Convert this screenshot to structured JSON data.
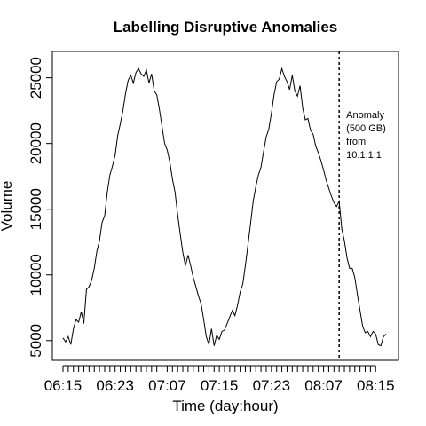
{
  "chart_data": {
    "type": "line",
    "title": "Labelling Disruptive Anomalies",
    "xlabel": "Time (day:hour)",
    "ylabel": "Volume",
    "ylim": [
      3500,
      27000
    ],
    "y_ticks": [
      5000,
      10000,
      15000,
      20000,
      25000
    ],
    "x_tick_labels": [
      "06:15",
      "06:23",
      "07:07",
      "07:15",
      "07:23",
      "08:07",
      "08:15"
    ],
    "x_index_range": [
      1,
      125
    ],
    "x_label_index": [
      1,
      21,
      41,
      61,
      81,
      101,
      121
    ],
    "x_minor_every": 2,
    "grid": false,
    "annotation": {
      "x_index": 107,
      "lines": [
        "Anomaly",
        "(500 GB)",
        "from",
        "10.1.1.1"
      ]
    },
    "series": [
      {
        "values": [
          5200,
          4900,
          5300,
          4700,
          5900,
          6600,
          6400,
          7200,
          6300,
          8900,
          9100,
          9600,
          10500,
          11800,
          12600,
          14000,
          14500,
          16300,
          17600,
          18300,
          19100,
          20600,
          21500,
          22500,
          23800,
          24800,
          25200,
          24600,
          25400,
          25700,
          25300,
          25100,
          25600,
          24600,
          25300,
          24000,
          23700,
          22600,
          21300,
          20000,
          19500,
          18600,
          17300,
          16300,
          14600,
          13100,
          11700,
          10700,
          11500,
          10700,
          9800,
          9100,
          8400,
          7800,
          6600,
          5300,
          4700,
          5900,
          4600,
          5400,
          5100,
          5700,
          5800,
          6300,
          6800,
          7300,
          6900,
          7700,
          8700,
          9300,
          10700,
          12300,
          13900,
          15600,
          16700,
          17600,
          18200,
          19400,
          20500,
          21100,
          22300,
          23700,
          24700,
          24900,
          25700,
          25100,
          24700,
          24100,
          25200,
          24000,
          23600,
          24400,
          22700,
          21800,
          21900,
          21000,
          20700,
          19800,
          19300,
          18700,
          18000,
          17200,
          16600,
          16000,
          15500,
          15200,
          15600,
          13500,
          12600,
          11300,
          10500,
          10500,
          9800,
          8500,
          7300,
          6100,
          5600,
          5700,
          5300,
          5700,
          5500,
          4700,
          4600,
          5300,
          5500
        ]
      }
    ],
    "colors": {
      "line": "#000000",
      "anomaly_line": "#000000",
      "frame": "#000000",
      "background": "#ffffff"
    }
  }
}
